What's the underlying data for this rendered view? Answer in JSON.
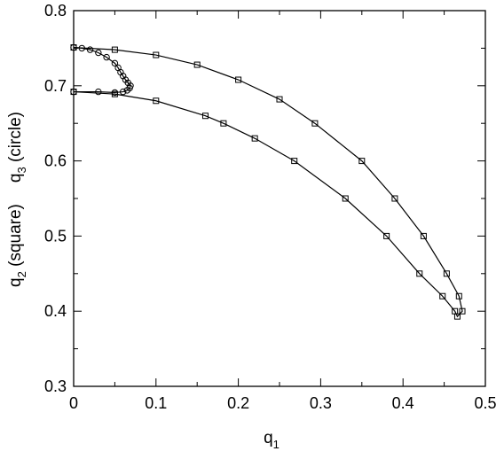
{
  "chart_data": {
    "type": "line",
    "xlabel": {
      "base": "q",
      "sub": "1"
    },
    "ylabel_parts": [
      {
        "base": "q",
        "sub": "2",
        "rest": " (square)"
      },
      {
        "base": "q",
        "sub": "3",
        "rest": " (circle)"
      }
    ],
    "xlim": [
      0,
      0.5
    ],
    "ylim": [
      0.3,
      0.8
    ],
    "xticks": [
      0,
      0.1,
      0.2,
      0.3,
      0.4,
      0.5
    ],
    "xtick_labels": [
      "0",
      "0.1",
      "0.2",
      "0.3",
      "0.4",
      "0.5"
    ],
    "yticks": [
      0.3,
      0.4,
      0.5,
      0.6,
      0.7,
      0.8
    ],
    "ytick_labels": [
      "0.3",
      "0.4",
      "0.5",
      "0.6",
      "0.7",
      "0.8"
    ],
    "grid": false,
    "series": [
      {
        "marker": "square",
        "points": [
          [
            0,
            0.692
          ],
          [
            0.05,
            0.689
          ],
          [
            0.1,
            0.68
          ],
          [
            0.16,
            0.66
          ],
          [
            0.182,
            0.65
          ],
          [
            0.22,
            0.63
          ],
          [
            0.268,
            0.6
          ],
          [
            0.33,
            0.55
          ],
          [
            0.38,
            0.5
          ],
          [
            0.42,
            0.45
          ],
          [
            0.448,
            0.42
          ],
          [
            0.463,
            0.4
          ],
          [
            0.466,
            0.393
          ],
          [
            0.472,
            0.4
          ],
          [
            0.468,
            0.42
          ],
          [
            0.453,
            0.45
          ],
          [
            0.425,
            0.5
          ],
          [
            0.39,
            0.55
          ],
          [
            0.35,
            0.6
          ],
          [
            0.293,
            0.65
          ],
          [
            0.25,
            0.682
          ],
          [
            0.2,
            0.708
          ],
          [
            0.15,
            0.728
          ],
          [
            0.1,
            0.741
          ],
          [
            0.05,
            0.748
          ],
          [
            0,
            0.751
          ]
        ]
      },
      {
        "marker": "circle",
        "points": [
          [
            0,
            0.692
          ],
          [
            0.03,
            0.692
          ],
          [
            0.05,
            0.691
          ],
          [
            0.06,
            0.692
          ],
          [
            0.065,
            0.694
          ],
          [
            0.068,
            0.697
          ],
          [
            0.069,
            0.7
          ],
          [
            0.066,
            0.704
          ],
          [
            0.063,
            0.708
          ],
          [
            0.06,
            0.713
          ],
          [
            0.057,
            0.718
          ],
          [
            0.054,
            0.724
          ],
          [
            0.05,
            0.73
          ],
          [
            0.04,
            0.738
          ],
          [
            0.03,
            0.744
          ],
          [
            0.02,
            0.748
          ],
          [
            0.01,
            0.75
          ],
          [
            0,
            0.751
          ]
        ]
      }
    ]
  }
}
